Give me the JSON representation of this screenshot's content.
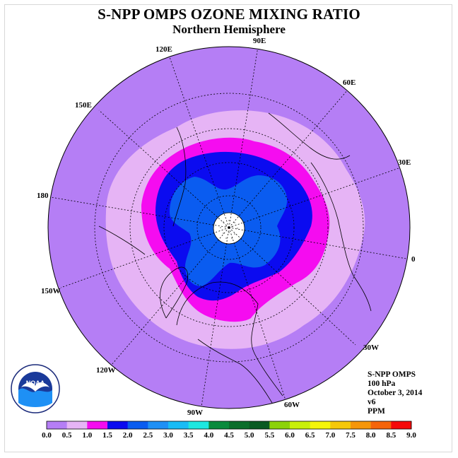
{
  "title": "S-NPP OMPS OZONE MIXING RATIO",
  "subtitle": "Northern Hemisphere",
  "info": {
    "instrument": "S-NPP OMPS",
    "level": "100 hPa",
    "date": "October 3, 2014",
    "version": "v6",
    "units": "PPM"
  },
  "logo": {
    "name": "noaa-logo",
    "text": "NOAA"
  },
  "longitude_labels": [
    "90E",
    "60E",
    "30E",
    "0",
    "30W",
    "60W",
    "90W",
    "120W",
    "150W",
    "180",
    "150E",
    "120E"
  ],
  "colorbar": {
    "ticks": [
      "0.0",
      "0.5",
      "1.0",
      "1.5",
      "2.0",
      "2.5",
      "3.0",
      "3.5",
      "4.0",
      "4.5",
      "5.0",
      "5.5",
      "6.0",
      "6.5",
      "7.0",
      "7.5",
      "8.0",
      "8.5",
      "9.0"
    ],
    "colors": [
      "#b57ef5",
      "#e6b4f5",
      "#f50cf0",
      "#0b0bf0",
      "#0a5cf0",
      "#1e90f5",
      "#18bcf5",
      "#1de8e0",
      "#0a8a3c",
      "#0b6e2b",
      "#0a5a22",
      "#8cd20a",
      "#c8f00a",
      "#f5f50a",
      "#f5c80a",
      "#f5960a",
      "#f5640a",
      "#f50a0a",
      "#7a4a2a"
    ],
    "min": 0.0,
    "max": 9.0,
    "step": 0.5
  },
  "colors": {
    "band_0_0": "#b57ef5",
    "band_0_5": "#e6b4f5",
    "band_1_0": "#f50cf0",
    "band_1_5": "#0b0bf0",
    "band_2_0": "#0a5cf0",
    "polar_gap": "#ffffff"
  }
}
